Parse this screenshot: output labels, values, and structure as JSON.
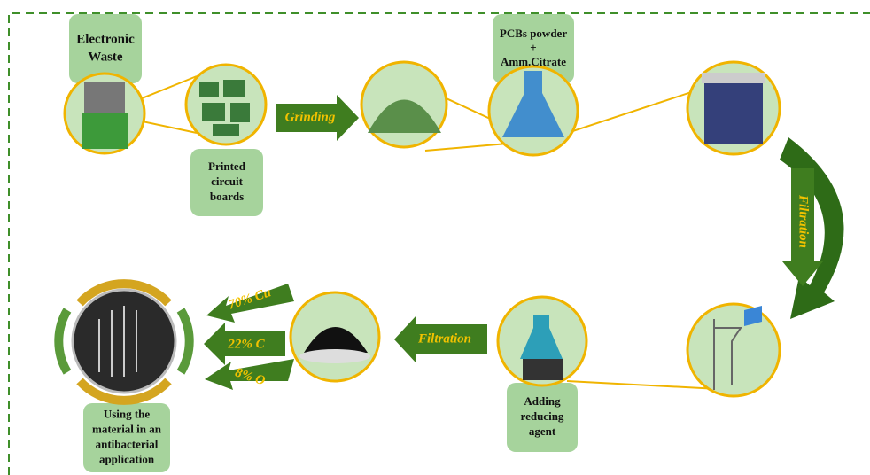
{
  "nodes": [
    {
      "label": [
        "Electronic",
        "Waste"
      ]
    },
    {
      "label": [
        "Printed",
        "circuit",
        "boards"
      ]
    },
    {
      "label": [
        "PCBs powder",
        "+",
        "Amm.Citrate"
      ]
    },
    {
      "label": [
        "Adding",
        "reducing",
        "agent"
      ]
    },
    {
      "label": [
        "Using the",
        "material in an",
        "antibacterial",
        "application"
      ]
    }
  ],
  "arrows": {
    "grinding": "Grinding",
    "filtration_1": "Filtration",
    "filtration_2": "Filtration"
  },
  "composition": [
    "70% Cu",
    "22% C",
    "8% O"
  ]
}
